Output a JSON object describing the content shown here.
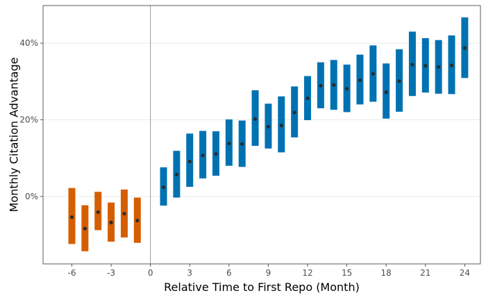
{
  "chart_data": {
    "type": "errorbar",
    "title": "",
    "xlabel": "Relative Time to First Repo (Month)",
    "ylabel": "Monthly Citation Advantage",
    "x_ticks": [
      -6,
      -3,
      0,
      3,
      6,
      9,
      12,
      15,
      18,
      21,
      24
    ],
    "x_tick_labels": [
      "-6",
      "-3",
      "0",
      "3",
      "6",
      "9",
      "12",
      "15",
      "18",
      "21",
      "24"
    ],
    "y_ticks": [
      0,
      20,
      40
    ],
    "y_tick_labels": [
      "0%",
      "20%",
      "40%"
    ],
    "xlim": [
      -8.2,
      25.2
    ],
    "ylim": [
      -17.6,
      49.8
    ],
    "grid": "horizontal major",
    "legend": "none",
    "reference_line_x": 0,
    "colors": {
      "pre": "#D55E00",
      "post": "#0072B2",
      "point": "#2b2b2b",
      "vline": "#999999",
      "grid": "#ebebeb"
    },
    "series": [
      {
        "group": "pre",
        "points": [
          {
            "x": -6,
            "y": -5.4,
            "lo": -12.4,
            "hi": 2.2
          },
          {
            "x": -5,
            "y": -8.4,
            "lo": -14.3,
            "hi": -2.3
          },
          {
            "x": -4,
            "y": -4.1,
            "lo": -8.8,
            "hi": 1.2
          },
          {
            "x": -3,
            "y": -6.8,
            "lo": -11.8,
            "hi": -1.6
          },
          {
            "x": -2,
            "y": -4.5,
            "lo": -10.7,
            "hi": 1.8
          },
          {
            "x": -1,
            "y": -6.3,
            "lo": -12.1,
            "hi": -0.3
          }
        ]
      },
      {
        "group": "post",
        "points": [
          {
            "x": 1,
            "y": 2.4,
            "lo": -2.4,
            "hi": 7.6
          },
          {
            "x": 2,
            "y": 5.7,
            "lo": -0.3,
            "hi": 11.9
          },
          {
            "x": 3,
            "y": 9.1,
            "lo": 2.5,
            "hi": 16.4
          },
          {
            "x": 4,
            "y": 10.7,
            "lo": 4.7,
            "hi": 17.1
          },
          {
            "x": 5,
            "y": 11.1,
            "lo": 5.4,
            "hi": 17.0
          },
          {
            "x": 6,
            "y": 13.8,
            "lo": 8.0,
            "hi": 20.1
          },
          {
            "x": 7,
            "y": 13.7,
            "lo": 7.7,
            "hi": 19.8
          },
          {
            "x": 8,
            "y": 20.2,
            "lo": 13.2,
            "hi": 27.7
          },
          {
            "x": 9,
            "y": 18.2,
            "lo": 12.5,
            "hi": 24.2
          },
          {
            "x": 10,
            "y": 18.5,
            "lo": 11.5,
            "hi": 26.1
          },
          {
            "x": 11,
            "y": 21.9,
            "lo": 15.4,
            "hi": 28.7
          },
          {
            "x": 12,
            "y": 25.6,
            "lo": 19.9,
            "hi": 31.4
          },
          {
            "x": 13,
            "y": 28.9,
            "lo": 23.0,
            "hi": 35.0
          },
          {
            "x": 14,
            "y": 29.1,
            "lo": 22.6,
            "hi": 35.6
          },
          {
            "x": 15,
            "y": 28.1,
            "lo": 22.0,
            "hi": 34.4
          },
          {
            "x": 16,
            "y": 30.3,
            "lo": 24.0,
            "hi": 37.0
          },
          {
            "x": 17,
            "y": 32.0,
            "lo": 24.7,
            "hi": 39.4
          },
          {
            "x": 18,
            "y": 27.2,
            "lo": 20.3,
            "hi": 34.7
          },
          {
            "x": 19,
            "y": 30.1,
            "lo": 22.1,
            "hi": 38.4
          },
          {
            "x": 20,
            "y": 34.4,
            "lo": 26.2,
            "hi": 43.0
          },
          {
            "x": 21,
            "y": 34.1,
            "lo": 27.1,
            "hi": 41.3
          },
          {
            "x": 22,
            "y": 33.8,
            "lo": 26.8,
            "hi": 40.8
          },
          {
            "x": 23,
            "y": 34.2,
            "lo": 26.7,
            "hi": 42.0
          },
          {
            "x": 24,
            "y": 38.7,
            "lo": 30.9,
            "hi": 46.7
          }
        ]
      }
    ]
  }
}
